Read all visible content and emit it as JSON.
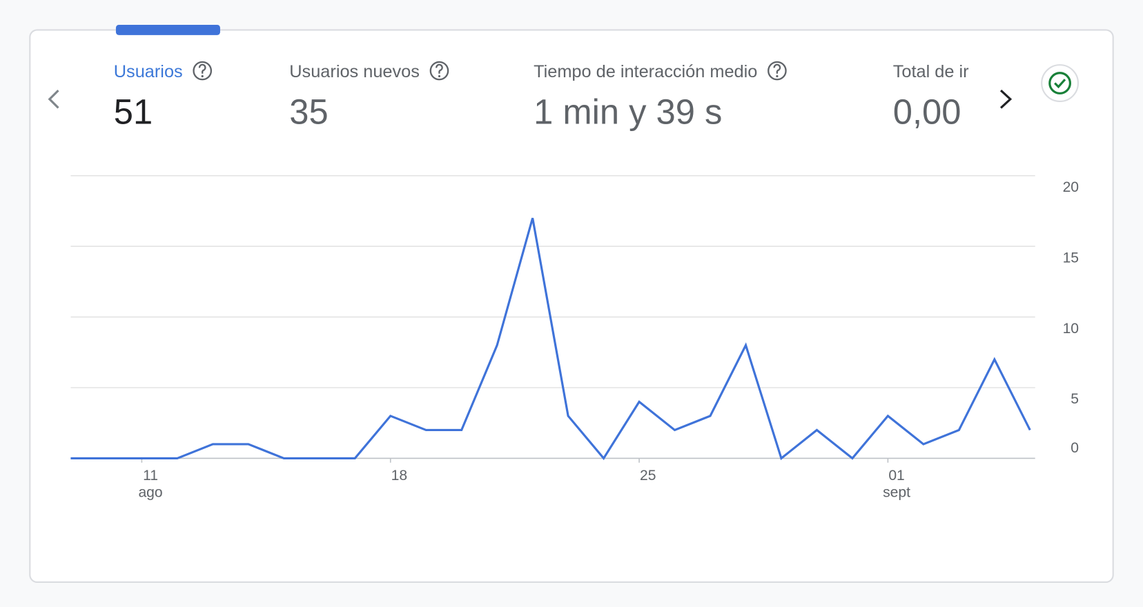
{
  "metrics": [
    {
      "label": "Usuarios",
      "value": "51"
    },
    {
      "label": "Usuarios nuevos",
      "value": "35"
    },
    {
      "label": "Tiempo de interacción medio",
      "value": "1 min y 39 s"
    },
    {
      "label": "Total de ir",
      "value": "0,00"
    }
  ],
  "chart_data": {
    "type": "line",
    "categories": [
      null,
      null,
      "11",
      null,
      null,
      null,
      null,
      null,
      null,
      "18",
      null,
      null,
      null,
      null,
      null,
      null,
      "25",
      null,
      null,
      null,
      null,
      null,
      null,
      "01",
      null,
      null,
      null,
      null
    ],
    "month_labels": [
      null,
      null,
      "ago",
      null,
      null,
      null,
      null,
      null,
      null,
      null,
      null,
      null,
      null,
      null,
      null,
      null,
      null,
      null,
      null,
      null,
      null,
      null,
      null,
      "sept",
      null,
      null,
      null,
      null
    ],
    "series": [
      {
        "name": "Usuarios",
        "color": "#3f73d9",
        "values": [
          0,
          0,
          0,
          0,
          1,
          1,
          0,
          0,
          0,
          3,
          2,
          2,
          8,
          17,
          3,
          0,
          4,
          2,
          3,
          8,
          0,
          2,
          0,
          3,
          1,
          2,
          7,
          2
        ]
      }
    ],
    "ylim": [
      0,
      20
    ],
    "yticks": [
      0,
      5,
      10,
      15,
      20
    ],
    "grid": true
  }
}
